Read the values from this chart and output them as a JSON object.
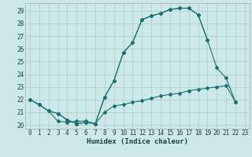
{
  "title": "",
  "xlabel": "Humidex (Indice chaleur)",
  "bg_color": "#cde8e8",
  "grid_color": "#aacccc",
  "line_color": "#1a7070",
  "xlim": [
    -0.5,
    23.5
  ],
  "ylim": [
    19.7,
    29.6
  ],
  "xticks": [
    0,
    1,
    2,
    3,
    4,
    5,
    6,
    7,
    8,
    9,
    10,
    11,
    12,
    13,
    14,
    15,
    16,
    17,
    18,
    19,
    20,
    21,
    22,
    23
  ],
  "yticks": [
    20,
    21,
    22,
    23,
    24,
    25,
    26,
    27,
    28,
    29
  ],
  "series": [
    {
      "x": [
        0,
        1,
        2,
        3,
        4,
        5,
        6,
        7,
        8,
        9,
        10,
        11,
        12,
        13,
        14,
        15,
        16,
        17,
        18,
        19
      ],
      "y": [
        22.0,
        21.6,
        21.1,
        20.9,
        20.4,
        20.1,
        20.2,
        20.1,
        22.2,
        23.5,
        25.7,
        26.5,
        28.3,
        28.6,
        28.8,
        29.1,
        29.2,
        29.2,
        28.7,
        26.7
      ]
    },
    {
      "x": [
        0,
        1,
        2,
        3,
        4,
        5,
        6,
        7,
        8,
        9,
        10,
        11,
        12,
        13,
        14,
        15,
        16,
        17,
        18,
        19,
        20,
        21,
        22
      ],
      "y": [
        22.0,
        21.6,
        21.1,
        20.9,
        20.4,
        20.1,
        20.2,
        20.1,
        22.2,
        23.5,
        25.7,
        26.5,
        28.3,
        28.6,
        28.8,
        29.1,
        29.2,
        29.2,
        28.7,
        26.7,
        24.5,
        23.7,
        21.8
      ]
    },
    {
      "x": [
        0,
        1,
        2,
        3,
        4,
        5,
        6,
        7,
        8,
        9,
        10,
        11,
        12,
        13,
        14,
        15,
        16,
        17,
        18,
        19,
        20,
        21,
        22
      ],
      "y": [
        22.0,
        21.6,
        21.1,
        20.3,
        20.2,
        20.3,
        20.3,
        20.1,
        21.0,
        21.5,
        21.6,
        21.8,
        21.9,
        22.1,
        22.3,
        22.4,
        22.5,
        22.7,
        22.8,
        22.9,
        23.0,
        23.1,
        21.8
      ]
    }
  ]
}
